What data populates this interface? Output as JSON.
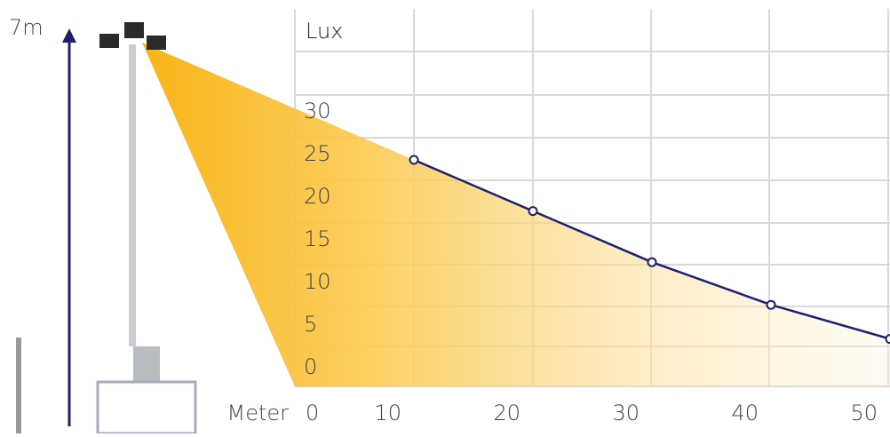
{
  "chart_data": {
    "type": "line",
    "y_label": "Lux",
    "x_label": "Meter",
    "height_label": "7m",
    "x": [
      10,
      20,
      30,
      40,
      50
    ],
    "series": [
      {
        "color": "#1f1f6e",
        "values": [
          25,
          19,
          13,
          8,
          4
        ]
      }
    ],
    "xlim": [
      0,
      50
    ],
    "xticks": [
      0,
      10,
      20,
      30,
      40,
      50
    ],
    "ylim": [
      0,
      30
    ],
    "yticks": [
      0,
      5,
      10,
      15,
      20,
      25,
      30
    ]
  }
}
